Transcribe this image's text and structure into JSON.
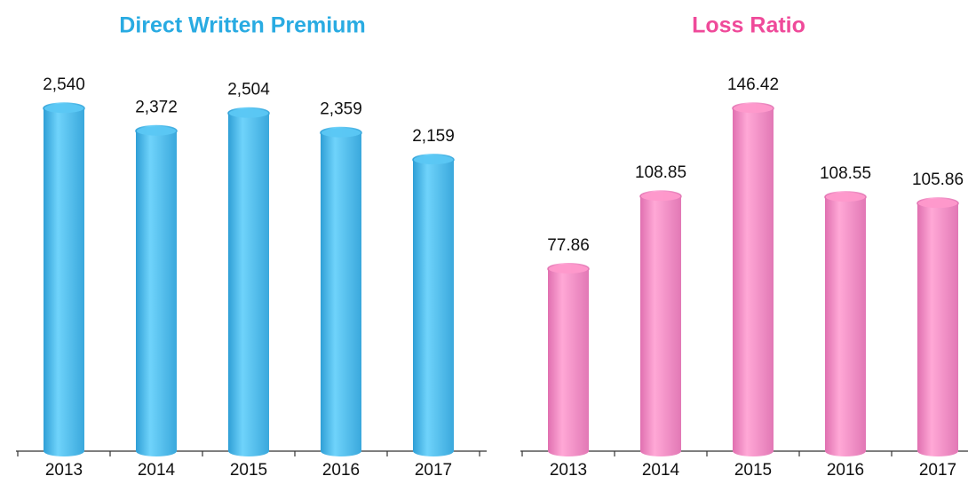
{
  "chart_data": [
    {
      "type": "bar",
      "title": "Direct Written Premium",
      "title_color": "#29abe2",
      "color": "#5bc8f5",
      "categories": [
        "2013",
        "2014",
        "2015",
        "2016",
        "2017"
      ],
      "values": [
        2540,
        2372,
        2504,
        2359,
        2159
      ],
      "value_labels": [
        "2,540",
        "2,372",
        "2,504",
        "2,359",
        "2,159"
      ]
    },
    {
      "type": "bar",
      "title": "Loss Ratio",
      "title_color": "#ef4a9a",
      "color": "#ff99cc",
      "categories": [
        "2013",
        "2014",
        "2015",
        "2016",
        "2017"
      ],
      "values": [
        77.86,
        108.85,
        146.42,
        108.55,
        105.86
      ]
    }
  ]
}
